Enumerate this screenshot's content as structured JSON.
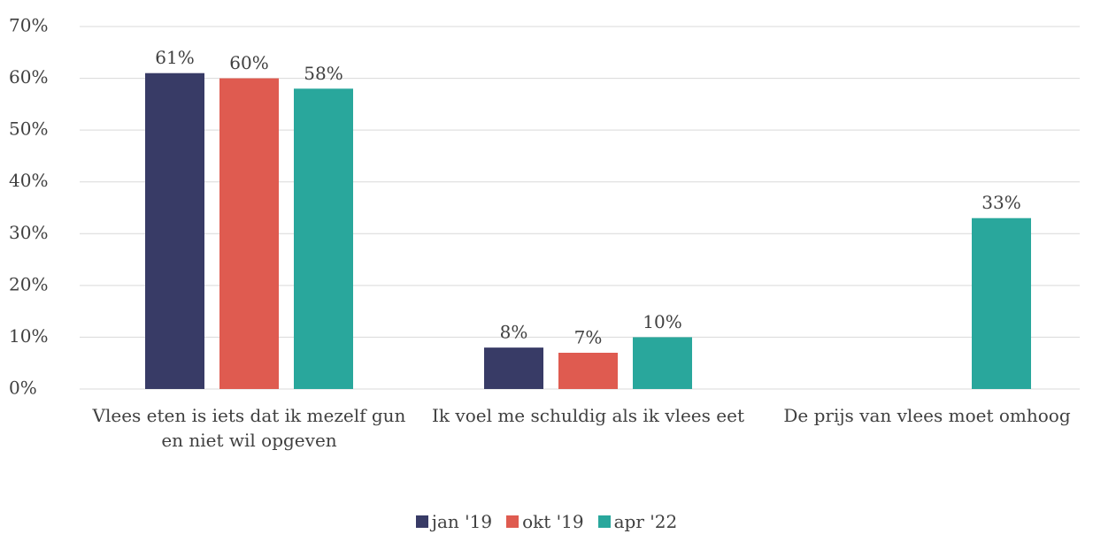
{
  "chart_data": {
    "type": "bar",
    "categories": [
      "Vlees eten is iets dat ik mezelf gun en niet wil opgeven",
      "Ik voel me schuldig als ik vlees eet",
      "De prijs van vlees moet omhoog"
    ],
    "series": [
      {
        "name": "jan '19",
        "color": "#383b66",
        "values": [
          61,
          8,
          null
        ],
        "value_labels": [
          "61%",
          "8%",
          null
        ]
      },
      {
        "name": "okt '19",
        "color": "#df5b50",
        "values": [
          60,
          7,
          null
        ],
        "value_labels": [
          "60%",
          "7%",
          null
        ]
      },
      {
        "name": "apr '22",
        "color": "#29a79c",
        "values": [
          58,
          10,
          33
        ],
        "value_labels": [
          "58%",
          "10%",
          "33%"
        ]
      }
    ],
    "ylim": [
      0,
      70
    ],
    "yticks": [
      {
        "value": 0,
        "label": "0%"
      },
      {
        "value": 10,
        "label": "10%"
      },
      {
        "value": 20,
        "label": "20%"
      },
      {
        "value": 30,
        "label": "30%"
      },
      {
        "value": 40,
        "label": "40%"
      },
      {
        "value": 50,
        "label": "50%"
      },
      {
        "value": 60,
        "label": "60%"
      },
      {
        "value": 70,
        "label": "70%"
      }
    ],
    "grid": true,
    "legend": "bottom"
  }
}
